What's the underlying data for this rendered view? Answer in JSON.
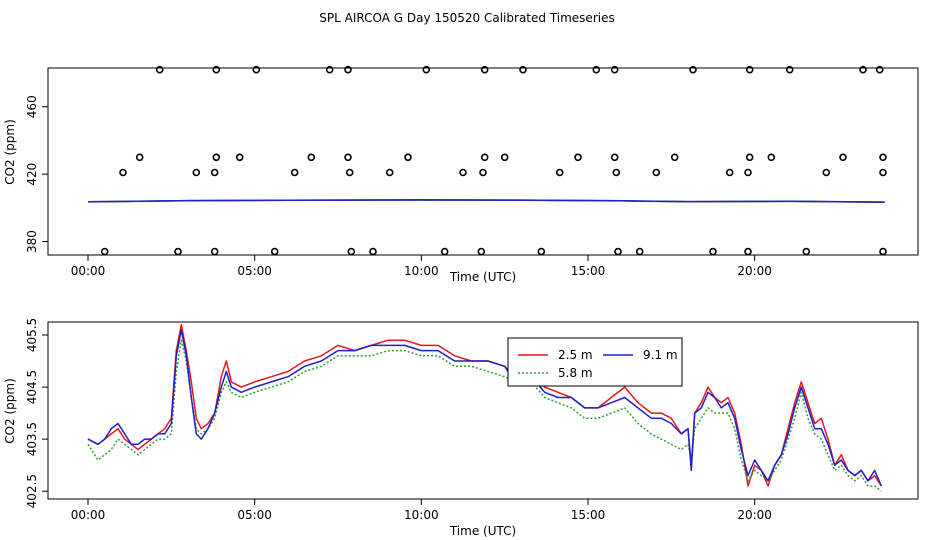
{
  "title": "SPL AIRCOA G  Day 150520  Calibrated Timeseries",
  "chart_data": [
    {
      "type": "scatter",
      "panel": "top",
      "xlabel": "Time (UTC)",
      "ylabel": "CO2 (ppm)",
      "xlim": [
        -1.2,
        24.9
      ],
      "ylim": [
        372,
        483
      ],
      "x_ticks": [
        0,
        5,
        10,
        15,
        20
      ],
      "x_tick_labels": [
        "00:00",
        "05:00",
        "10:00",
        "15:00",
        "20:00"
      ],
      "y_ticks": [
        380,
        420,
        460
      ],
      "y_tick_labels": [
        "380",
        "420",
        "460"
      ],
      "points_x": [
        2.15,
        3.85,
        5.05,
        7.25,
        7.8,
        10.15,
        11.9,
        13.05,
        15.25,
        15.8,
        18.15,
        19.85,
        21.05,
        23.25,
        23.75,
        1.55,
        3.85,
        4.55,
        6.7,
        7.8,
        9.6,
        11.9,
        12.5,
        14.7,
        15.8,
        17.6,
        19.85,
        20.5,
        22.65,
        23.85,
        1.05,
        3.25,
        3.8,
        6.2,
        7.85,
        9.05,
        11.25,
        11.85,
        14.15,
        15.85,
        17.05,
        19.25,
        19.8,
        22.15,
        23.85,
        0.5,
        2.7,
        3.8,
        5.6,
        7.9,
        8.55,
        10.7,
        11.8,
        13.6,
        15.9,
        16.55,
        18.75,
        19.8,
        21.55,
        23.85
      ],
      "points_y": [
        482,
        482,
        482,
        482,
        482,
        482,
        482,
        482,
        482,
        482,
        482,
        482,
        482,
        482,
        482,
        430,
        430,
        430,
        430,
        430,
        430,
        430,
        430,
        430,
        430,
        430,
        430,
        430,
        430,
        430,
        421,
        421,
        421,
        421,
        421,
        421,
        421,
        421,
        421,
        421,
        421,
        421,
        421,
        421,
        421,
        374,
        374,
        374,
        374,
        374,
        374,
        374,
        374,
        374,
        374,
        374,
        374,
        374,
        374,
        374
      ],
      "series": [
        {
          "name": "2.5 m",
          "color": "#e41a1c",
          "x": [
            0,
            3,
            6,
            10,
            13,
            16,
            18,
            21,
            23.9
          ],
          "y": [
            403.6,
            404.3,
            404.5,
            404.7,
            404.6,
            404.2,
            403.7,
            403.9,
            403.4
          ]
        },
        {
          "name": "5.8 m",
          "color": "#2ca02c",
          "x": [
            0,
            3,
            6,
            10,
            13,
            16,
            18,
            21,
            23.9
          ],
          "y": [
            403.5,
            404.2,
            404.5,
            404.6,
            404.5,
            404.1,
            403.6,
            403.8,
            403.3
          ]
        },
        {
          "name": "9.1 m",
          "color": "#1f1fcc",
          "x": [
            0,
            3,
            6,
            10,
            13,
            16,
            18,
            21,
            23.9
          ],
          "y": [
            403.6,
            404.3,
            404.5,
            404.7,
            404.6,
            404.2,
            403.7,
            403.9,
            403.4
          ]
        }
      ]
    },
    {
      "type": "line",
      "panel": "bottom",
      "xlabel": "Time (UTC)",
      "ylabel": "CO2 (ppm)",
      "xlim": [
        -1.2,
        24.9
      ],
      "ylim": [
        402.35,
        405.75
      ],
      "x_ticks": [
        0,
        5,
        10,
        15,
        20
      ],
      "x_tick_labels": [
        "00:00",
        "05:00",
        "10:00",
        "15:00",
        "20:00"
      ],
      "y_ticks": [
        402.5,
        403.5,
        404.5,
        405.5
      ],
      "y_tick_labels": [
        "402.5",
        "403.5",
        "404.5",
        "405.5"
      ],
      "legend": {
        "position": "top-center",
        "columns": 2
      },
      "series": [
        {
          "name": "2.5 m",
          "color": "#e41a1c",
          "dash": "solid",
          "x": [
            0.0,
            0.3,
            0.5,
            0.7,
            0.9,
            1.1,
            1.3,
            1.5,
            1.7,
            1.9,
            2.1,
            2.3,
            2.5,
            2.65,
            2.8,
            2.95,
            3.1,
            3.25,
            3.4,
            3.6,
            3.8,
            4.0,
            4.15,
            4.3,
            4.6,
            5.0,
            5.5,
            6.0,
            6.5,
            7.0,
            7.5,
            8.0,
            8.5,
            9.0,
            9.5,
            10.0,
            10.5,
            11.0,
            11.5,
            12.0,
            12.5,
            12.8,
            13.0,
            13.3,
            13.7,
            14.1,
            14.5,
            14.9,
            15.3,
            15.7,
            16.1,
            16.5,
            16.9,
            17.2,
            17.5,
            17.8,
            18.0,
            18.1,
            18.2,
            18.4,
            18.6,
            18.8,
            19.0,
            19.2,
            19.4,
            19.6,
            19.8,
            20.0,
            20.2,
            20.4,
            20.6,
            20.8,
            21.0,
            21.2,
            21.4,
            21.6,
            21.8,
            22.0,
            22.2,
            22.4,
            22.6,
            22.8,
            23.0,
            23.2,
            23.4,
            23.6,
            23.8
          ],
          "y": [
            403.5,
            403.4,
            403.5,
            403.6,
            403.7,
            403.5,
            403.4,
            403.3,
            403.4,
            403.5,
            403.6,
            403.7,
            403.9,
            405.2,
            405.7,
            405.2,
            404.6,
            403.9,
            403.7,
            403.8,
            404.0,
            404.7,
            405.0,
            404.6,
            404.5,
            404.6,
            404.7,
            404.8,
            405.0,
            405.1,
            405.3,
            405.2,
            405.3,
            405.4,
            405.4,
            405.3,
            405.3,
            405.1,
            405.0,
            405.0,
            404.9,
            404.7,
            404.9,
            404.8,
            404.5,
            404.4,
            404.3,
            404.1,
            404.1,
            404.3,
            404.5,
            404.2,
            404.0,
            404.0,
            403.9,
            403.6,
            403.7,
            403.0,
            404.0,
            404.2,
            404.5,
            404.3,
            404.2,
            404.3,
            404.0,
            403.4,
            402.6,
            403.0,
            402.9,
            402.6,
            403.0,
            403.2,
            403.7,
            404.2,
            404.6,
            404.2,
            403.8,
            403.9,
            403.5,
            403.0,
            403.2,
            402.9,
            402.8,
            402.9,
            402.7,
            402.8,
            402.6
          ]
        },
        {
          "name": "5.8 m",
          "color": "#2ca02c",
          "dash": "dotted",
          "x": [
            0.0,
            0.3,
            0.5,
            0.7,
            0.9,
            1.1,
            1.3,
            1.5,
            1.7,
            1.9,
            2.1,
            2.3,
            2.5,
            2.65,
            2.8,
            2.95,
            3.1,
            3.25,
            3.4,
            3.6,
            3.8,
            4.0,
            4.15,
            4.3,
            4.6,
            5.0,
            5.5,
            6.0,
            6.5,
            7.0,
            7.5,
            8.0,
            8.5,
            9.0,
            9.5,
            10.0,
            10.5,
            11.0,
            11.5,
            12.0,
            12.5,
            12.8,
            13.0,
            13.3,
            13.7,
            14.1,
            14.5,
            14.9,
            15.3,
            15.7,
            16.1,
            16.5,
            16.9,
            17.2,
            17.5,
            17.8,
            18.0,
            18.1,
            18.2,
            18.4,
            18.6,
            18.8,
            19.0,
            19.2,
            19.4,
            19.6,
            19.8,
            20.0,
            20.2,
            20.4,
            20.6,
            20.8,
            21.0,
            21.2,
            21.4,
            21.6,
            21.8,
            22.0,
            22.2,
            22.4,
            22.6,
            22.8,
            23.0,
            23.2,
            23.4,
            23.6,
            23.8
          ],
          "y": [
            403.4,
            403.1,
            403.2,
            403.3,
            403.5,
            403.4,
            403.3,
            403.2,
            403.3,
            403.4,
            403.5,
            403.5,
            403.6,
            404.8,
            405.4,
            405.0,
            404.3,
            403.7,
            403.6,
            403.7,
            403.9,
            404.4,
            404.6,
            404.4,
            404.3,
            404.4,
            404.5,
            404.6,
            404.8,
            404.9,
            405.1,
            405.1,
            405.1,
            405.2,
            405.2,
            405.1,
            405.1,
            404.9,
            404.9,
            404.8,
            404.7,
            404.6,
            404.8,
            404.6,
            404.3,
            404.2,
            404.1,
            403.9,
            403.9,
            404.0,
            404.1,
            403.8,
            403.6,
            403.5,
            403.4,
            403.3,
            403.4,
            403.1,
            403.7,
            403.9,
            404.1,
            404.0,
            404.0,
            404.0,
            403.7,
            403.1,
            402.7,
            402.9,
            402.8,
            402.7,
            402.9,
            403.1,
            403.5,
            403.9,
            404.4,
            403.9,
            403.6,
            403.5,
            403.2,
            402.9,
            403.0,
            402.8,
            402.7,
            402.8,
            402.6,
            402.6,
            402.5
          ]
        },
        {
          "name": "9.1 m",
          "color": "#1f1fcc",
          "dash": "solid",
          "x": [
            0.0,
            0.3,
            0.5,
            0.7,
            0.9,
            1.1,
            1.3,
            1.5,
            1.7,
            1.9,
            2.1,
            2.3,
            2.5,
            2.65,
            2.8,
            2.95,
            3.1,
            3.25,
            3.4,
            3.6,
            3.8,
            4.0,
            4.15,
            4.3,
            4.6,
            5.0,
            5.5,
            6.0,
            6.5,
            7.0,
            7.5,
            8.0,
            8.5,
            9.0,
            9.5,
            10.0,
            10.5,
            11.0,
            11.5,
            12.0,
            12.5,
            12.8,
            13.0,
            13.3,
            13.7,
            14.1,
            14.5,
            14.9,
            15.3,
            15.7,
            16.1,
            16.5,
            16.9,
            17.2,
            17.5,
            17.8,
            18.0,
            18.1,
            18.2,
            18.4,
            18.6,
            18.8,
            19.0,
            19.2,
            19.4,
            19.6,
            19.8,
            20.0,
            20.2,
            20.4,
            20.6,
            20.8,
            21.0,
            21.2,
            21.4,
            21.6,
            21.8,
            22.0,
            22.2,
            22.4,
            22.6,
            22.8,
            23.0,
            23.2,
            23.4,
            23.6,
            23.8
          ],
          "y": [
            403.5,
            403.4,
            403.5,
            403.7,
            403.8,
            403.6,
            403.4,
            403.4,
            403.5,
            403.5,
            403.6,
            403.6,
            403.8,
            405.1,
            405.6,
            405.1,
            404.3,
            403.6,
            403.5,
            403.7,
            404.0,
            404.5,
            404.8,
            404.5,
            404.4,
            404.5,
            404.6,
            404.7,
            404.9,
            405.0,
            405.2,
            405.2,
            405.3,
            405.3,
            405.3,
            405.2,
            405.2,
            405.0,
            405.0,
            405.0,
            404.9,
            404.6,
            404.9,
            404.7,
            404.4,
            404.3,
            404.3,
            404.1,
            404.1,
            404.2,
            404.3,
            404.1,
            403.9,
            403.9,
            403.8,
            403.6,
            403.7,
            402.9,
            404.0,
            404.1,
            404.4,
            404.3,
            404.1,
            404.2,
            403.9,
            403.3,
            402.8,
            403.1,
            402.9,
            402.7,
            403.0,
            403.2,
            403.6,
            404.1,
            404.5,
            404.1,
            403.7,
            403.7,
            403.4,
            403.0,
            403.1,
            402.9,
            402.8,
            402.9,
            402.7,
            402.9,
            402.6
          ]
        }
      ]
    }
  ]
}
